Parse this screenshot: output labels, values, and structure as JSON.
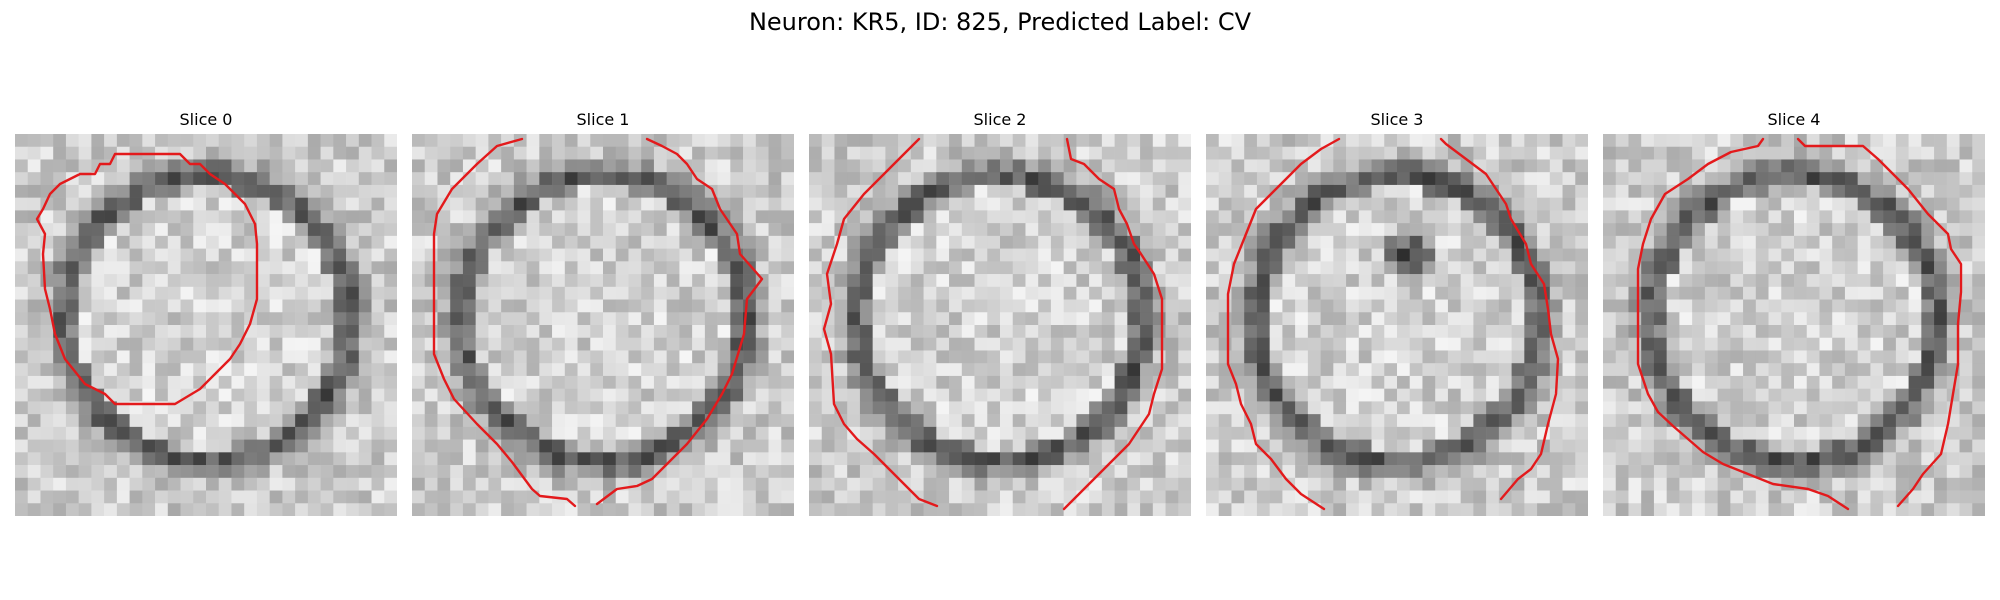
{
  "figure": {
    "title": "Neuron: KR5, ID: 825, Predicted Label: CV"
  },
  "panels": [
    {
      "title": "Slice 0",
      "seed": 11,
      "dark_spot": false
    },
    {
      "title": "Slice 1",
      "seed": 23,
      "dark_spot": false
    },
    {
      "title": "Slice 2",
      "seed": 37,
      "dark_spot": false
    },
    {
      "title": "Slice 3",
      "seed": 41,
      "dark_spot": true
    },
    {
      "title": "Slice 4",
      "seed": 59,
      "dark_spot": false
    }
  ],
  "colors": {
    "contour": "#e31a1c"
  }
}
